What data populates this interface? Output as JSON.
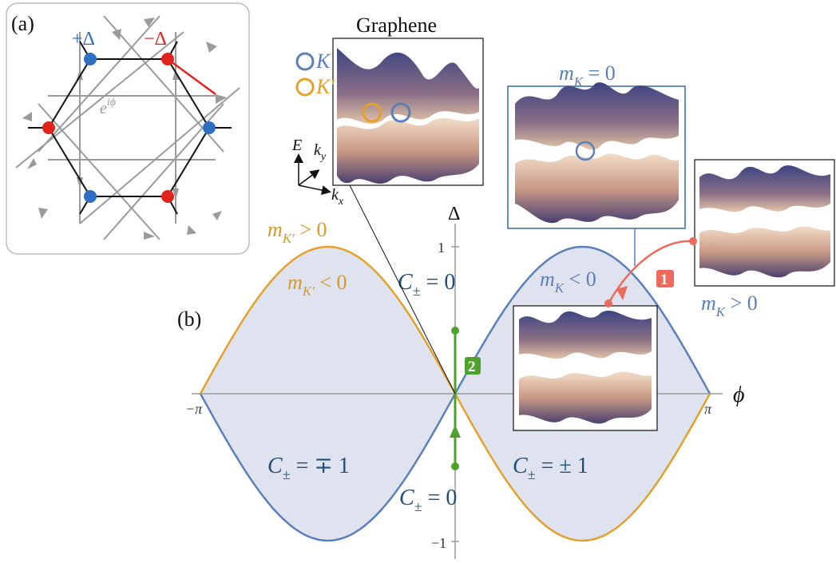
{
  "panel_a": {
    "label": "(a)",
    "plus_delta": "+Δ",
    "minus_delta": "−Δ",
    "phase": "e",
    "phase_sup": "iϕ",
    "colors": {
      "plus": "#2f6fc1",
      "minus": "#e0231c",
      "hopping": "#9a9a9a",
      "panel_border": "#bbbbbb"
    }
  },
  "panel_b": {
    "label": "(b)",
    "axis_delta": "Δ",
    "axis_phi": "ϕ",
    "tick_plus_one": "1",
    "tick_minus_one": "−1",
    "tick_minus_pi": "−π",
    "tick_pi": "π"
  },
  "graphene_inset": {
    "title": "Graphene",
    "legend_K_symbol": "K",
    "legend_Kp_symbol": "K′",
    "axis_E": "E",
    "axis_ky": "k",
    "axis_ky_sub": "y",
    "axis_kx": "k",
    "axis_kx_sub": "x"
  },
  "labels": {
    "mK_eq0": {
      "m": "m",
      "sub": "K",
      "rel": " = 0"
    },
    "mK_lt0": {
      "m": "m",
      "sub": "K",
      "rel": " < 0"
    },
    "mK_gt0": {
      "m": "m",
      "sub": "K",
      "rel": " > 0"
    },
    "mKp_gt0": {
      "m": "m",
      "sub": "K′",
      "rel": " > 0"
    },
    "mKp_lt0": {
      "m": "m",
      "sub": "K′",
      "rel": " < 0"
    },
    "C_top": {
      "C": "C",
      "sub": "±",
      "rel": " = 0"
    },
    "C_bottom": {
      "C": "C",
      "sub": "±",
      "rel": " = 0"
    },
    "C_left": {
      "C": "C",
      "sub": "±",
      "rel": " = ∓ 1"
    },
    "C_right": {
      "C": "C",
      "sub": "±",
      "rel": " = ± 1"
    }
  },
  "badges": {
    "path1": "1",
    "path2": "2"
  },
  "colors": {
    "blue_curve": "#5b7fb8",
    "orange_curve": "#e3a12c",
    "shade": "#dfe3ef",
    "label_blue": "#5b7fb8",
    "label_orange": "#d59a2a",
    "chern_text": "#1f4e79",
    "green_path": "#4ea22b",
    "red_path": "#ee6a5c",
    "band_top": "#4a4f86",
    "band_bottom": "#d9b69a"
  },
  "chart_data": {
    "type": "line",
    "x_range": [
      "−π",
      "π"
    ],
    "y_range": [
      -1,
      1
    ],
    "series": [
      {
        "kind": "sine",
        "amplitude": 1,
        "sign": 1
      },
      {
        "kind": "sine",
        "amplitude": 1,
        "sign": -1
      }
    ]
  }
}
